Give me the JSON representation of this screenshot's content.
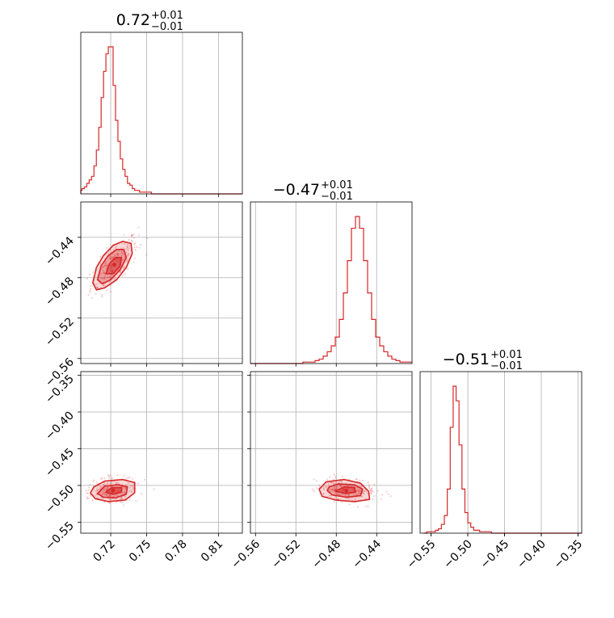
{
  "colors": {
    "accent": "#d62728",
    "grid": "#b0b0b0",
    "frame": "#000000"
  },
  "chart_data": {
    "type": "corner",
    "grid": true,
    "parameters": [
      {
        "title": "0.72",
        "title_sup": "+0.01",
        "title_sub": "−0.01",
        "range": [
          0.695,
          0.83
        ],
        "ticks": [
          0.72,
          0.75,
          0.78,
          0.81
        ],
        "tick_labels": [
          "0.72",
          "0.75",
          "0.78",
          "0.81"
        ],
        "hist_bin_start": 0.69,
        "hist_bin_width": 0.002,
        "hist": [
          0,
          1,
          2,
          3,
          4,
          6,
          8,
          10,
          16,
          25,
          38,
          55,
          70,
          80,
          84,
          84,
          62,
          42,
          30,
          20,
          14,
          10,
          6,
          5,
          3,
          2,
          2,
          1,
          1,
          1,
          1,
          1,
          0,
          0,
          0,
          0,
          0,
          0,
          0,
          0,
          0,
          0,
          0,
          0,
          0,
          0,
          0,
          0,
          0,
          0,
          0,
          0,
          0,
          0,
          0,
          0,
          0,
          0,
          0,
          0,
          0,
          0,
          0,
          0,
          0,
          0,
          0,
          0,
          0,
          0
        ]
      },
      {
        "title": "−0.47",
        "title_sup": "+0.01",
        "title_sub": "−0.01",
        "range": [
          -0.565,
          -0.405
        ],
        "ticks": [
          -0.56,
          -0.52,
          -0.48,
          -0.44
        ],
        "tick_labels": [
          "−0.56",
          "−0.52",
          "−0.48",
          "−0.44"
        ],
        "hist_bin_start": -0.565,
        "hist_bin_width": 0.004,
        "hist": [
          0,
          0,
          0,
          0,
          0,
          0,
          0,
          0,
          0,
          0,
          0,
          0,
          0,
          1,
          1,
          1,
          2,
          3,
          5,
          8,
          12,
          18,
          30,
          48,
          70,
          92,
          100,
          92,
          70,
          48,
          30,
          18,
          12,
          8,
          5,
          3,
          2,
          1,
          1,
          1
        ]
      },
      {
        "title": "−0.51",
        "title_sup": "+0.01",
        "title_sub": "−0.01",
        "range": [
          -0.565,
          -0.345
        ],
        "ticks": [
          -0.55,
          -0.5,
          -0.45,
          -0.4,
          -0.35
        ],
        "tick_labels": [
          "−0.55",
          "−0.50",
          "−0.45",
          "−0.40",
          "−0.35"
        ],
        "hist_bin_start": -0.56,
        "hist_bin_width": 0.004,
        "hist": [
          0,
          1,
          1,
          1,
          2,
          3,
          6,
          12,
          30,
          72,
          100,
          90,
          60,
          30,
          14,
          7,
          4,
          2,
          2,
          1,
          1,
          1,
          1,
          0,
          0,
          0,
          0,
          0,
          0,
          0,
          0,
          0,
          0,
          0,
          0,
          0,
          0,
          0,
          0,
          0,
          0,
          0,
          0,
          0,
          0,
          0,
          0,
          0,
          0,
          0,
          0,
          0,
          0,
          0,
          0
        ]
      }
    ],
    "pairs": [
      {
        "x": 0,
        "y": 1,
        "center": [
          0.723,
          -0.467
        ],
        "contours": [
          [
            [
              0.705,
              -0.485
            ],
            [
              0.708,
              -0.492
            ],
            [
              0.715,
              -0.49
            ],
            [
              0.725,
              -0.482
            ],
            [
              0.733,
              -0.47
            ],
            [
              0.738,
              -0.456
            ],
            [
              0.737,
              -0.446
            ],
            [
              0.73,
              -0.444
            ],
            [
              0.722,
              -0.448
            ],
            [
              0.714,
              -0.458
            ],
            [
              0.708,
              -0.47
            ]
          ],
          [
            [
              0.709,
              -0.482
            ],
            [
              0.713,
              -0.486
            ],
            [
              0.72,
              -0.482
            ],
            [
              0.728,
              -0.472
            ],
            [
              0.733,
              -0.46
            ],
            [
              0.731,
              -0.452
            ],
            [
              0.725,
              -0.452
            ],
            [
              0.718,
              -0.458
            ],
            [
              0.712,
              -0.468
            ]
          ],
          [
            [
              0.716,
              -0.476
            ],
            [
              0.722,
              -0.476
            ],
            [
              0.728,
              -0.468
            ],
            [
              0.729,
              -0.46
            ],
            [
              0.724,
              -0.46
            ],
            [
              0.719,
              -0.466
            ]
          ]
        ]
      },
      {
        "x": 0,
        "y": 2,
        "center": [
          0.722,
          -0.507
        ],
        "contours": [
          [
            [
              0.703,
              -0.51
            ],
            [
              0.707,
              -0.518
            ],
            [
              0.718,
              -0.522
            ],
            [
              0.732,
              -0.52
            ],
            [
              0.74,
              -0.51
            ],
            [
              0.74,
              -0.496
            ],
            [
              0.73,
              -0.492
            ],
            [
              0.715,
              -0.494
            ],
            [
              0.706,
              -0.502
            ]
          ],
          [
            [
              0.709,
              -0.511
            ],
            [
              0.714,
              -0.516
            ],
            [
              0.724,
              -0.517
            ],
            [
              0.733,
              -0.512
            ],
            [
              0.734,
              -0.502
            ],
            [
              0.726,
              -0.499
            ],
            [
              0.715,
              -0.501
            ]
          ],
          [
            [
              0.716,
              -0.509
            ],
            [
              0.722,
              -0.512
            ],
            [
              0.729,
              -0.509
            ],
            [
              0.729,
              -0.503
            ],
            [
              0.721,
              -0.503
            ]
          ]
        ]
      },
      {
        "x": 1,
        "y": 2,
        "center": [
          -0.47,
          -0.507
        ],
        "contours": [
          [
            [
              -0.497,
              -0.505
            ],
            [
              -0.494,
              -0.515
            ],
            [
              -0.48,
              -0.52
            ],
            [
              -0.462,
              -0.522
            ],
            [
              -0.447,
              -0.519
            ],
            [
              -0.448,
              -0.508
            ],
            [
              -0.456,
              -0.497
            ],
            [
              -0.472,
              -0.492
            ],
            [
              -0.49,
              -0.495
            ]
          ],
          [
            [
              -0.489,
              -0.507
            ],
            [
              -0.484,
              -0.513
            ],
            [
              -0.47,
              -0.516
            ],
            [
              -0.456,
              -0.514
            ],
            [
              -0.454,
              -0.505
            ],
            [
              -0.462,
              -0.499
            ],
            [
              -0.478,
              -0.498
            ],
            [
              -0.487,
              -0.502
            ]
          ],
          [
            [
              -0.481,
              -0.508
            ],
            [
              -0.47,
              -0.511
            ],
            [
              -0.461,
              -0.509
            ],
            [
              -0.462,
              -0.503
            ],
            [
              -0.472,
              -0.502
            ]
          ]
        ]
      }
    ]
  }
}
